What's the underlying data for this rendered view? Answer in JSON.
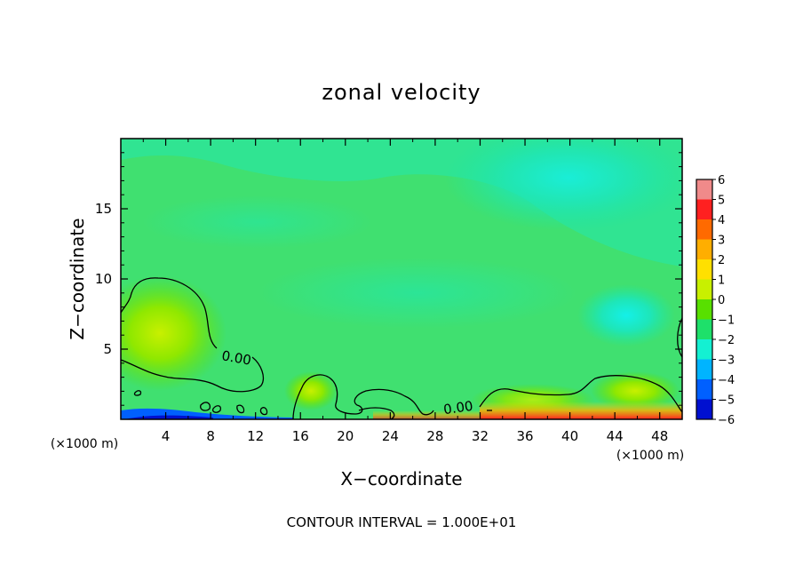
{
  "chart_data": {
    "type": "heatmap",
    "title": "zonal velocity",
    "xlabel": "X−coordinate",
    "ylabel": "Z−coordinate",
    "x_unit": "(×1000 m)",
    "y_unit": "(×1000 m)",
    "xlim": [
      0,
      50
    ],
    "ylim": [
      0,
      20
    ],
    "x_ticks": [
      "4",
      "8",
      "12",
      "16",
      "20",
      "24",
      "28",
      "32",
      "36",
      "40",
      "44",
      "48"
    ],
    "y_ticks": [
      "5",
      "10",
      "15"
    ],
    "colorbar": {
      "levels": [
        "6",
        "5",
        "4",
        "3",
        "2",
        "1",
        "0",
        "−1",
        "−2",
        "−3",
        "−4",
        "−5",
        "−6"
      ],
      "colors": [
        "#f08a8a",
        "#ff2020",
        "#ff6a00",
        "#ffae00",
        "#ffe000",
        "#c8f000",
        "#58e000",
        "#1ee06a",
        "#14f0d2",
        "#00b4ff",
        "#0060ff",
        "#0010d0",
        "#8000c0"
      ]
    },
    "contour_labels": [
      "0.00",
      "0.00"
    ],
    "footer": "CONTOUR INTERVAL = 1.000E+01"
  }
}
